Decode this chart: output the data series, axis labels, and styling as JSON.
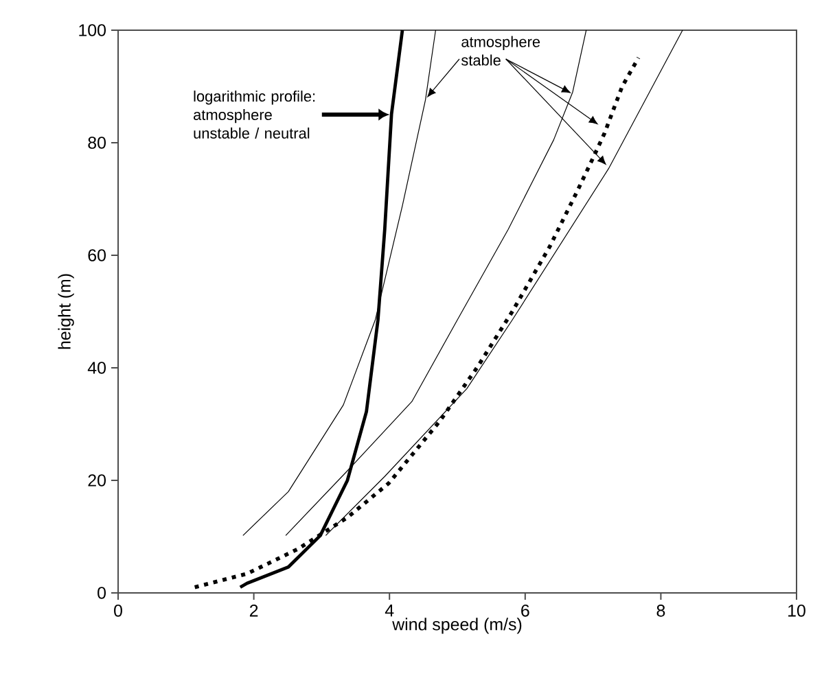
{
  "chart_data": {
    "type": "line",
    "xlabel": "wind speed (m/s)",
    "ylabel": "height (m)",
    "xlim": [
      0,
      10
    ],
    "ylim": [
      0,
      100
    ],
    "xticks": [
      0,
      2,
      4,
      6,
      8,
      10
    ],
    "yticks": [
      0,
      20,
      40,
      60,
      80,
      100
    ],
    "grid": false,
    "marker": "none",
    "series": [
      {
        "color": "#000000",
        "line_style": "solid",
        "x": [
          1.8,
          1.9,
          2.51,
          2.98,
          3.38,
          3.66,
          3.83,
          3.93,
          4.03,
          4.19
        ],
        "values": [
          1,
          1.7,
          4.6,
          10.2,
          20,
          32.2,
          48.5,
          64.6,
          85.1,
          100
        ]
      },
      {
        "color": "#000000",
        "line_style": "solid",
        "x": [
          1.84,
          2.51,
          3.32,
          3.79,
          4.19,
          4.53,
          4.68
        ],
        "values": [
          10.2,
          18,
          33.4,
          48.5,
          68.8,
          87.6,
          100
        ]
      },
      {
        "color": "#000000",
        "line_style": "solid",
        "x": [
          2.47,
          3.38,
          4.33,
          5.0,
          5.75,
          6.42,
          6.7,
          6.9
        ],
        "values": [
          10.2,
          21.7,
          34,
          48.5,
          64.6,
          80.5,
          89,
          100
        ]
      },
      {
        "color": "#000000",
        "line_style": "solid",
        "x": [
          3.06,
          3.93,
          5.14,
          5.81,
          7.23,
          8.32
        ],
        "values": [
          10.2,
          20.7,
          36.3,
          48.5,
          75.4,
          100
        ]
      },
      {
        "color": "#000000",
        "line_style": "dotted",
        "x": [
          1.13,
          1.9,
          2.65,
          3.38,
          3.99,
          4.74,
          5.3,
          5.81,
          6.36,
          6.76,
          7.02,
          7.17,
          7.43,
          7.67
        ],
        "values": [
          1,
          3.4,
          7.8,
          13.4,
          19.5,
          30.5,
          40.2,
          50,
          61.5,
          71.2,
          77.8,
          81.7,
          90,
          95.1
        ]
      }
    ],
    "annotations": [
      "logarithmic profile: atmosphere unstable / neutral",
      {
        "text": "atmosphere stable",
        "x": 4.55,
        "y": 88
      }
    ]
  }
}
